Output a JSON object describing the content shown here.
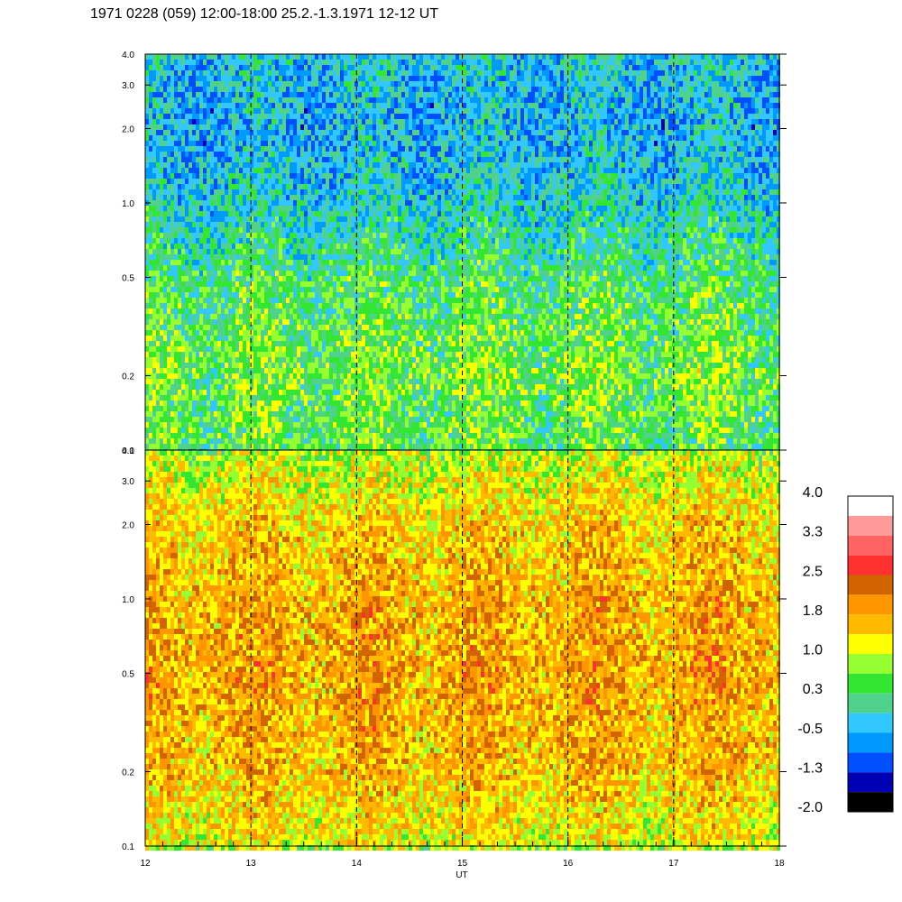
{
  "title": "1971 0228 (059) 12:00-18:00 25.2.-1.3.1971  12-12 UT",
  "chart_data": [
    {
      "type": "heatmap",
      "panel": "upper",
      "xlim": [
        12,
        18
      ],
      "ylim": [
        0.1,
        4.0
      ],
      "yscale": "log",
      "x_ticks": [
        "12",
        "13",
        "14",
        "15",
        "16",
        "17",
        "18"
      ],
      "y_ticks": [
        "0.1",
        "0.2",
        "0.5",
        "1.0",
        "2.0",
        "3.0",
        "4.0"
      ],
      "y_tick_values": [
        0.1,
        0.2,
        0.5,
        1.0,
        2.0,
        3.0,
        4.0
      ],
      "hour_markers": [
        13,
        14,
        15,
        16,
        17
      ],
      "dominant_level": 0.3,
      "level_profile": [
        {
          "y": 0.1,
          "level": 0.4
        },
        {
          "y": 0.2,
          "level": 0.6
        },
        {
          "y": 0.5,
          "level": 0.3
        },
        {
          "y": 1.0,
          "level": -0.2
        },
        {
          "y": 2.0,
          "level": -0.5
        },
        {
          "y": 4.0,
          "level": -0.3
        }
      ]
    },
    {
      "type": "heatmap",
      "panel": "lower",
      "xlim": [
        12,
        18
      ],
      "ylim": [
        0.1,
        4.0
      ],
      "yscale": "log",
      "xlabel": "UT",
      "x_ticks": [
        "12",
        "13",
        "14",
        "15",
        "16",
        "17",
        "18"
      ],
      "y_ticks": [
        "0.1",
        "0.2",
        "0.5",
        "1.0",
        "2.0",
        "3.0",
        "4.0"
      ],
      "y_tick_values": [
        0.1,
        0.2,
        0.5,
        1.0,
        2.0,
        3.0,
        4.0
      ],
      "hour_markers": [
        13,
        14,
        15,
        16,
        17
      ],
      "dominant_level": 1.6,
      "level_profile": [
        {
          "y": 0.1,
          "level": 1.2
        },
        {
          "y": 0.2,
          "level": 1.6
        },
        {
          "y": 0.5,
          "level": 1.8
        },
        {
          "y": 1.0,
          "level": 1.7
        },
        {
          "y": 2.0,
          "level": 1.5
        },
        {
          "y": 4.0,
          "level": 0.9
        }
      ]
    }
  ],
  "colorbar": {
    "labels": [
      "4.0",
      "3.3",
      "2.5",
      "1.8",
      "1.0",
      "0.3",
      "-0.5",
      "-1.3",
      "-2.0"
    ],
    "label_values": [
      4.0,
      3.3,
      2.5,
      1.8,
      1.0,
      0.3,
      -0.5,
      -1.3,
      -2.0
    ],
    "range": [
      -2.0,
      4.0
    ],
    "colors_top_to_bottom": [
      "#ffffff",
      "#ff9a9a",
      "#ff6464",
      "#ff3030",
      "#d26400",
      "#ff9600",
      "#ffba00",
      "#ffff00",
      "#96ff32",
      "#32e632",
      "#50d28c",
      "#32c8ff",
      "#009aff",
      "#0050ff",
      "#0000b4",
      "#000000"
    ]
  }
}
